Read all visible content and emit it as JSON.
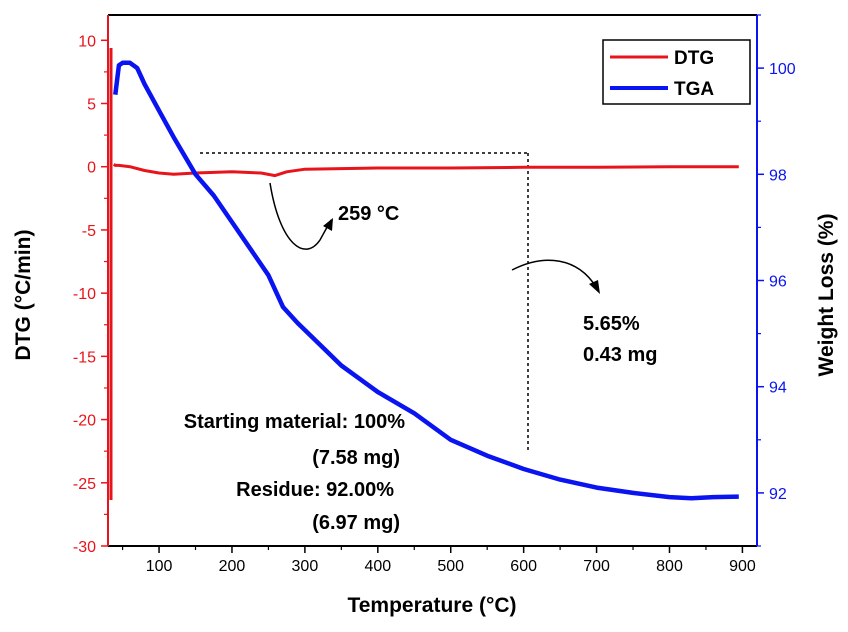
{
  "chart_data": {
    "type": "line",
    "xlabel": "Temperature (°C)",
    "ylabel_left": "DTG (°C/min)",
    "ylabel_right": "Weight Loss (%)",
    "xlim": [
      30,
      920
    ],
    "xticks": [
      100,
      200,
      300,
      400,
      500,
      600,
      700,
      800,
      900
    ],
    "ylim_left": [
      -30,
      12
    ],
    "yticks_left": [
      10,
      5,
      0,
      -5,
      -10,
      -15,
      -20,
      -25,
      -30
    ],
    "ylim_right": [
      91,
      101
    ],
    "yticks_right": [
      100,
      98,
      96,
      94,
      92
    ],
    "colors": {
      "dtg": "#e8141b",
      "tga": "#0a14f0",
      "left_axis": "#e8141b",
      "right_axis": "#0a14f0"
    },
    "series": [
      {
        "name": "DTG",
        "axis": "left",
        "x": [
          38,
          40,
          45,
          60,
          80,
          100,
          120,
          150,
          200,
          240,
          259,
          275,
          300,
          350,
          400,
          500,
          600,
          700,
          800,
          895
        ],
        "y": [
          0.2,
          0.1,
          0.1,
          0.0,
          -0.3,
          -0.5,
          -0.6,
          -0.5,
          -0.4,
          -0.5,
          -0.7,
          -0.4,
          -0.2,
          -0.15,
          -0.1,
          -0.1,
          -0.05,
          -0.05,
          0.0,
          0.0
        ]
      },
      {
        "name": "TGA",
        "axis": "right",
        "x": [
          40,
          45,
          50,
          60,
          70,
          80,
          100,
          120,
          150,
          175,
          200,
          230,
          250,
          270,
          290,
          320,
          350,
          400,
          450,
          500,
          550,
          600,
          650,
          700,
          750,
          800,
          830,
          860,
          895
        ],
        "y": [
          99.5,
          100.05,
          100.1,
          100.1,
          100.0,
          99.7,
          99.2,
          98.7,
          98.0,
          97.6,
          97.1,
          96.5,
          96.1,
          95.5,
          95.2,
          94.8,
          94.4,
          93.9,
          93.5,
          93.0,
          92.7,
          92.45,
          92.25,
          92.1,
          92.0,
          91.92,
          91.9,
          91.92,
          91.93
        ]
      }
    ],
    "legend": {
      "position": "top-right",
      "entries": [
        "DTG",
        "TGA"
      ]
    },
    "annotations": {
      "peak": "259 °C",
      "loss_pct": "5.65%",
      "loss_mg": "0.43 mg",
      "start_line1": "Starting material: 100%",
      "start_line2": "(7.58 mg)",
      "residue_line1": "Residue: 92.00%",
      "residue_line2": "(6.97 mg)"
    }
  }
}
